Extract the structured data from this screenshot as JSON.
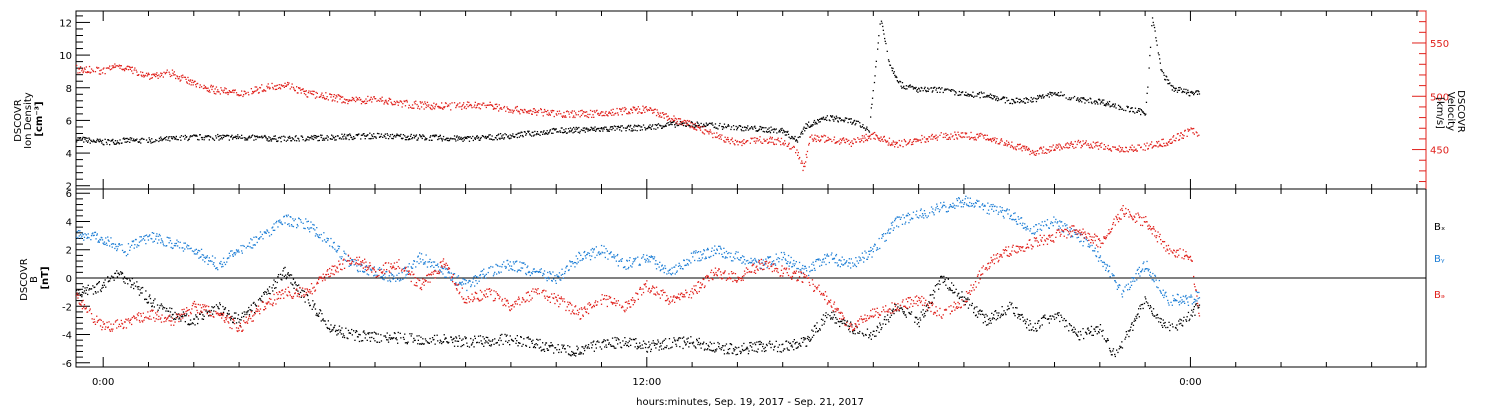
{
  "x_axis": {
    "label": "hours:minutes, Sep. 19, 2017 - Sep. 21, 2017",
    "ticks": [
      "0:00",
      "12:00",
      "0:00"
    ]
  },
  "colors": {
    "density": "#000000",
    "velocity": "#e0201b",
    "bx": "#000000",
    "by": "#1f7fd6",
    "bz": "#e0201b"
  },
  "chart_data": [
    {
      "type": "scatter",
      "panel": "top",
      "xlabel": "hours:minutes, Sep. 19, 2017 - Sep. 21, 2017",
      "x_range_hours": [
        -0.6,
        29.2
      ],
      "x_ticks": [
        {
          "h": 0,
          "label": "0:00"
        },
        {
          "h": 12,
          "label": "12:00"
        },
        {
          "h": 24,
          "label": "0:00"
        }
      ],
      "left_axis": {
        "label_lines": [
          "DSCOVR",
          "Ion Density",
          "[cm⁻³]"
        ],
        "ylim": [
          1.8,
          12.7
        ],
        "ticks": [
          2,
          4,
          6,
          8,
          10,
          12
        ]
      },
      "right_axis": {
        "label_lines": [
          "DSCOVR",
          "Velocity",
          "[km/s]"
        ],
        "ylim": [
          413,
          580
        ],
        "ticks": [
          450,
          500,
          550
        ]
      },
      "series": [
        {
          "key": "density",
          "axis": "left",
          "color": "#000000",
          "points": [
            [
              -0.6,
              4.9
            ],
            [
              0.0,
              4.7
            ],
            [
              0.5,
              4.8
            ],
            [
              1.0,
              4.8
            ],
            [
              2.0,
              5.0
            ],
            [
              3.0,
              5.0
            ],
            [
              4.0,
              4.9
            ],
            [
              5.0,
              5.0
            ],
            [
              6.0,
              5.1
            ],
            [
              7.0,
              5.0
            ],
            [
              8.0,
              4.9
            ],
            [
              9.0,
              5.1
            ],
            [
              10.0,
              5.4
            ],
            [
              11.0,
              5.5
            ],
            [
              12.0,
              5.6
            ],
            [
              12.5,
              5.8
            ],
            [
              13.0,
              5.8
            ],
            [
              13.5,
              5.7
            ],
            [
              14.0,
              5.6
            ],
            [
              15.0,
              5.4
            ],
            [
              15.3,
              4.8
            ],
            [
              15.5,
              5.7
            ],
            [
              16.0,
              6.2
            ],
            [
              16.5,
              6.0
            ],
            [
              16.9,
              5.5
            ],
            [
              17.15,
              12.3
            ],
            [
              17.35,
              9.5
            ],
            [
              17.6,
              8.2
            ],
            [
              18.0,
              7.9
            ],
            [
              18.5,
              7.9
            ],
            [
              19.0,
              7.6
            ],
            [
              19.5,
              7.6
            ],
            [
              20.0,
              7.2
            ],
            [
              20.5,
              7.3
            ],
            [
              21.0,
              7.7
            ],
            [
              21.5,
              7.3
            ],
            [
              22.0,
              7.2
            ],
            [
              22.5,
              6.8
            ],
            [
              23.0,
              6.5
            ],
            [
              23.15,
              12.3
            ],
            [
              23.35,
              9.0
            ],
            [
              23.6,
              8.0
            ],
            [
              24.0,
              7.7
            ],
            [
              24.2,
              7.7
            ]
          ]
        },
        {
          "key": "velocity",
          "axis": "right",
          "color": "#e0201b",
          "points": [
            [
              -0.6,
              526
            ],
            [
              0.0,
              524
            ],
            [
              0.3,
              530
            ],
            [
              0.7,
              524
            ],
            [
              1.0,
              520
            ],
            [
              1.5,
              522
            ],
            [
              2.0,
              512
            ],
            [
              2.5,
              506
            ],
            [
              3.0,
              503
            ],
            [
              3.5,
              508
            ],
            [
              4.0,
              512
            ],
            [
              4.5,
              503
            ],
            [
              5.0,
              500
            ],
            [
              5.5,
              496
            ],
            [
              6.0,
              498
            ],
            [
              6.5,
              494
            ],
            [
              7.0,
              492
            ],
            [
              7.5,
              491
            ],
            [
              8.0,
              492
            ],
            [
              8.5,
              492
            ],
            [
              9.0,
              488
            ],
            [
              9.5,
              486
            ],
            [
              10.0,
              484
            ],
            [
              10.5,
              484
            ],
            [
              11.0,
              484
            ],
            [
              11.5,
              487
            ],
            [
              12.0,
              488
            ],
            [
              12.5,
              480
            ],
            [
              13.0,
              473
            ],
            [
              13.5,
              464
            ],
            [
              14.0,
              456
            ],
            [
              14.5,
              460
            ],
            [
              15.0,
              458
            ],
            [
              15.3,
              450
            ],
            [
              15.45,
              432
            ],
            [
              15.6,
              462
            ],
            [
              16.0,
              460
            ],
            [
              16.5,
              457
            ],
            [
              17.0,
              464
            ],
            [
              17.5,
              455
            ],
            [
              18.0,
              460
            ],
            [
              18.5,
              463
            ],
            [
              19.0,
              464
            ],
            [
              19.5,
              462
            ],
            [
              20.0,
              456
            ],
            [
              20.5,
              448
            ],
            [
              21.0,
              452
            ],
            [
              21.5,
              456
            ],
            [
              22.0,
              454
            ],
            [
              22.5,
              451
            ],
            [
              23.0,
              453
            ],
            [
              23.5,
              458
            ],
            [
              24.0,
              468
            ],
            [
              24.2,
              466
            ]
          ]
        }
      ]
    },
    {
      "type": "scatter",
      "panel": "bottom",
      "xlabel": "hours:minutes, Sep. 19, 2017 - Sep. 21, 2017",
      "x_range_hours": [
        -0.6,
        29.2
      ],
      "left_axis": {
        "label_lines": [
          "DSCOVR",
          "B",
          "[nT]"
        ],
        "ylim": [
          -6.3,
          6.3
        ],
        "ticks": [
          -6,
          -4,
          -2,
          0,
          2,
          4,
          6
        ]
      },
      "legend": [
        "Bₓ",
        "Bᵧ",
        "Bₔ"
      ],
      "series": [
        {
          "key": "bx",
          "name": "Bx",
          "color": "#000000",
          "points": [
            [
              -0.6,
              -1.0
            ],
            [
              0.0,
              -0.5
            ],
            [
              0.3,
              0.5
            ],
            [
              0.7,
              -0.5
            ],
            [
              1.0,
              -1.5
            ],
            [
              1.5,
              -2.5
            ],
            [
              2.0,
              -3.0
            ],
            [
              2.5,
              -2.0
            ],
            [
              3.0,
              -3.0
            ],
            [
              3.5,
              -1.5
            ],
            [
              4.0,
              0.5
            ],
            [
              4.5,
              -1.5
            ],
            [
              5.0,
              -3.5
            ],
            [
              5.5,
              -4.0
            ],
            [
              6.0,
              -4.2
            ],
            [
              6.5,
              -4.2
            ],
            [
              7.0,
              -4.3
            ],
            [
              7.5,
              -4.3
            ],
            [
              8.0,
              -4.5
            ],
            [
              8.5,
              -4.4
            ],
            [
              9.0,
              -4.3
            ],
            [
              9.5,
              -4.6
            ],
            [
              10.0,
              -5.0
            ],
            [
              10.5,
              -5.2
            ],
            [
              11.0,
              -4.6
            ],
            [
              11.5,
              -4.5
            ],
            [
              12.0,
              -4.8
            ],
            [
              12.5,
              -4.6
            ],
            [
              13.0,
              -4.5
            ],
            [
              13.5,
              -4.9
            ],
            [
              14.0,
              -5.0
            ],
            [
              14.5,
              -4.8
            ],
            [
              15.0,
              -4.8
            ],
            [
              15.5,
              -4.5
            ],
            [
              16.0,
              -2.5
            ],
            [
              16.5,
              -3.5
            ],
            [
              17.0,
              -4.0
            ],
            [
              17.5,
              -2.0
            ],
            [
              18.0,
              -3.0
            ],
            [
              18.5,
              0.0
            ],
            [
              19.0,
              -1.5
            ],
            [
              19.5,
              -3.0
            ],
            [
              20.0,
              -2.0
            ],
            [
              20.5,
              -3.5
            ],
            [
              21.0,
              -2.5
            ],
            [
              21.5,
              -4.0
            ],
            [
              22.0,
              -3.5
            ],
            [
              22.3,
              -5.4
            ],
            [
              22.6,
              -4.0
            ],
            [
              23.0,
              -1.5
            ],
            [
              23.3,
              -3.0
            ],
            [
              23.6,
              -3.5
            ],
            [
              24.0,
              -2.5
            ],
            [
              24.2,
              -1.8
            ]
          ]
        },
        {
          "key": "by",
          "name": "By",
          "color": "#1f7fd6",
          "points": [
            [
              -0.6,
              3.2
            ],
            [
              0.0,
              2.8
            ],
            [
              0.5,
              2.0
            ],
            [
              1.0,
              3.0
            ],
            [
              1.5,
              2.5
            ],
            [
              2.0,
              2.0
            ],
            [
              2.5,
              1.0
            ],
            [
              3.0,
              2.0
            ],
            [
              3.5,
              3.0
            ],
            [
              4.0,
              4.2
            ],
            [
              4.5,
              3.8
            ],
            [
              5.0,
              2.5
            ],
            [
              5.5,
              1.0
            ],
            [
              6.0,
              0.5
            ],
            [
              6.5,
              0.0
            ],
            [
              7.0,
              1.5
            ],
            [
              7.5,
              0.5
            ],
            [
              8.0,
              -0.5
            ],
            [
              8.5,
              0.5
            ],
            [
              9.0,
              1.0
            ],
            [
              9.5,
              0.5
            ],
            [
              10.0,
              0.0
            ],
            [
              10.5,
              1.5
            ],
            [
              11.0,
              2.0
            ],
            [
              11.5,
              1.0
            ],
            [
              12.0,
              1.5
            ],
            [
              12.5,
              0.5
            ],
            [
              13.0,
              1.5
            ],
            [
              13.5,
              2.0
            ],
            [
              14.0,
              1.5
            ],
            [
              14.5,
              1.0
            ],
            [
              15.0,
              1.5
            ],
            [
              15.5,
              0.5
            ],
            [
              16.0,
              1.5
            ],
            [
              16.5,
              1.0
            ],
            [
              17.0,
              2.0
            ],
            [
              17.5,
              4.0
            ],
            [
              18.0,
              4.5
            ],
            [
              18.5,
              5.0
            ],
            [
              19.0,
              5.5
            ],
            [
              19.5,
              5.0
            ],
            [
              20.0,
              4.5
            ],
            [
              20.5,
              3.5
            ],
            [
              21.0,
              4.0
            ],
            [
              21.5,
              3.0
            ],
            [
              22.0,
              1.5
            ],
            [
              22.5,
              -1.0
            ],
            [
              23.0,
              1.0
            ],
            [
              23.5,
              -1.5
            ],
            [
              24.0,
              -1.5
            ],
            [
              24.2,
              -1.0
            ]
          ]
        },
        {
          "key": "bz",
          "name": "Bz",
          "color": "#e0201b",
          "points": [
            [
              -0.6,
              -1.2
            ],
            [
              -0.3,
              -2.5
            ],
            [
              0.0,
              -3.5
            ],
            [
              0.5,
              -3.2
            ],
            [
              1.0,
              -2.5
            ],
            [
              1.5,
              -3.0
            ],
            [
              2.0,
              -2.0
            ],
            [
              2.5,
              -2.5
            ],
            [
              3.0,
              -3.5
            ],
            [
              3.5,
              -2.0
            ],
            [
              4.0,
              -1.0
            ],
            [
              4.5,
              -1.0
            ],
            [
              5.0,
              0.5
            ],
            [
              5.5,
              1.5
            ],
            [
              6.0,
              0.5
            ],
            [
              6.5,
              1.0
            ],
            [
              7.0,
              -0.5
            ],
            [
              7.5,
              1.0
            ],
            [
              8.0,
              -1.5
            ],
            [
              8.5,
              -1.0
            ],
            [
              9.0,
              -2.0
            ],
            [
              9.5,
              -1.0
            ],
            [
              10.0,
              -1.5
            ],
            [
              10.5,
              -2.5
            ],
            [
              11.0,
              -1.5
            ],
            [
              11.5,
              -2.0
            ],
            [
              12.0,
              -0.5
            ],
            [
              12.5,
              -1.5
            ],
            [
              13.0,
              -1.0
            ],
            [
              13.5,
              0.5
            ],
            [
              14.0,
              0.0
            ],
            [
              14.5,
              1.0
            ],
            [
              15.0,
              0.5
            ],
            [
              15.5,
              0.0
            ],
            [
              16.0,
              -1.5
            ],
            [
              16.5,
              -3.5
            ],
            [
              17.0,
              -2.5
            ],
            [
              17.5,
              -2.0
            ],
            [
              18.0,
              -1.5
            ],
            [
              18.5,
              -2.5
            ],
            [
              19.0,
              -1.5
            ],
            [
              19.5,
              1.0
            ],
            [
              20.0,
              2.0
            ],
            [
              20.5,
              2.5
            ],
            [
              21.0,
              3.0
            ],
            [
              21.5,
              3.5
            ],
            [
              22.0,
              2.5
            ],
            [
              22.5,
              4.8
            ],
            [
              23.0,
              4.0
            ],
            [
              23.5,
              2.0
            ],
            [
              24.0,
              1.5
            ],
            [
              24.2,
              -3.0
            ]
          ]
        }
      ]
    }
  ]
}
